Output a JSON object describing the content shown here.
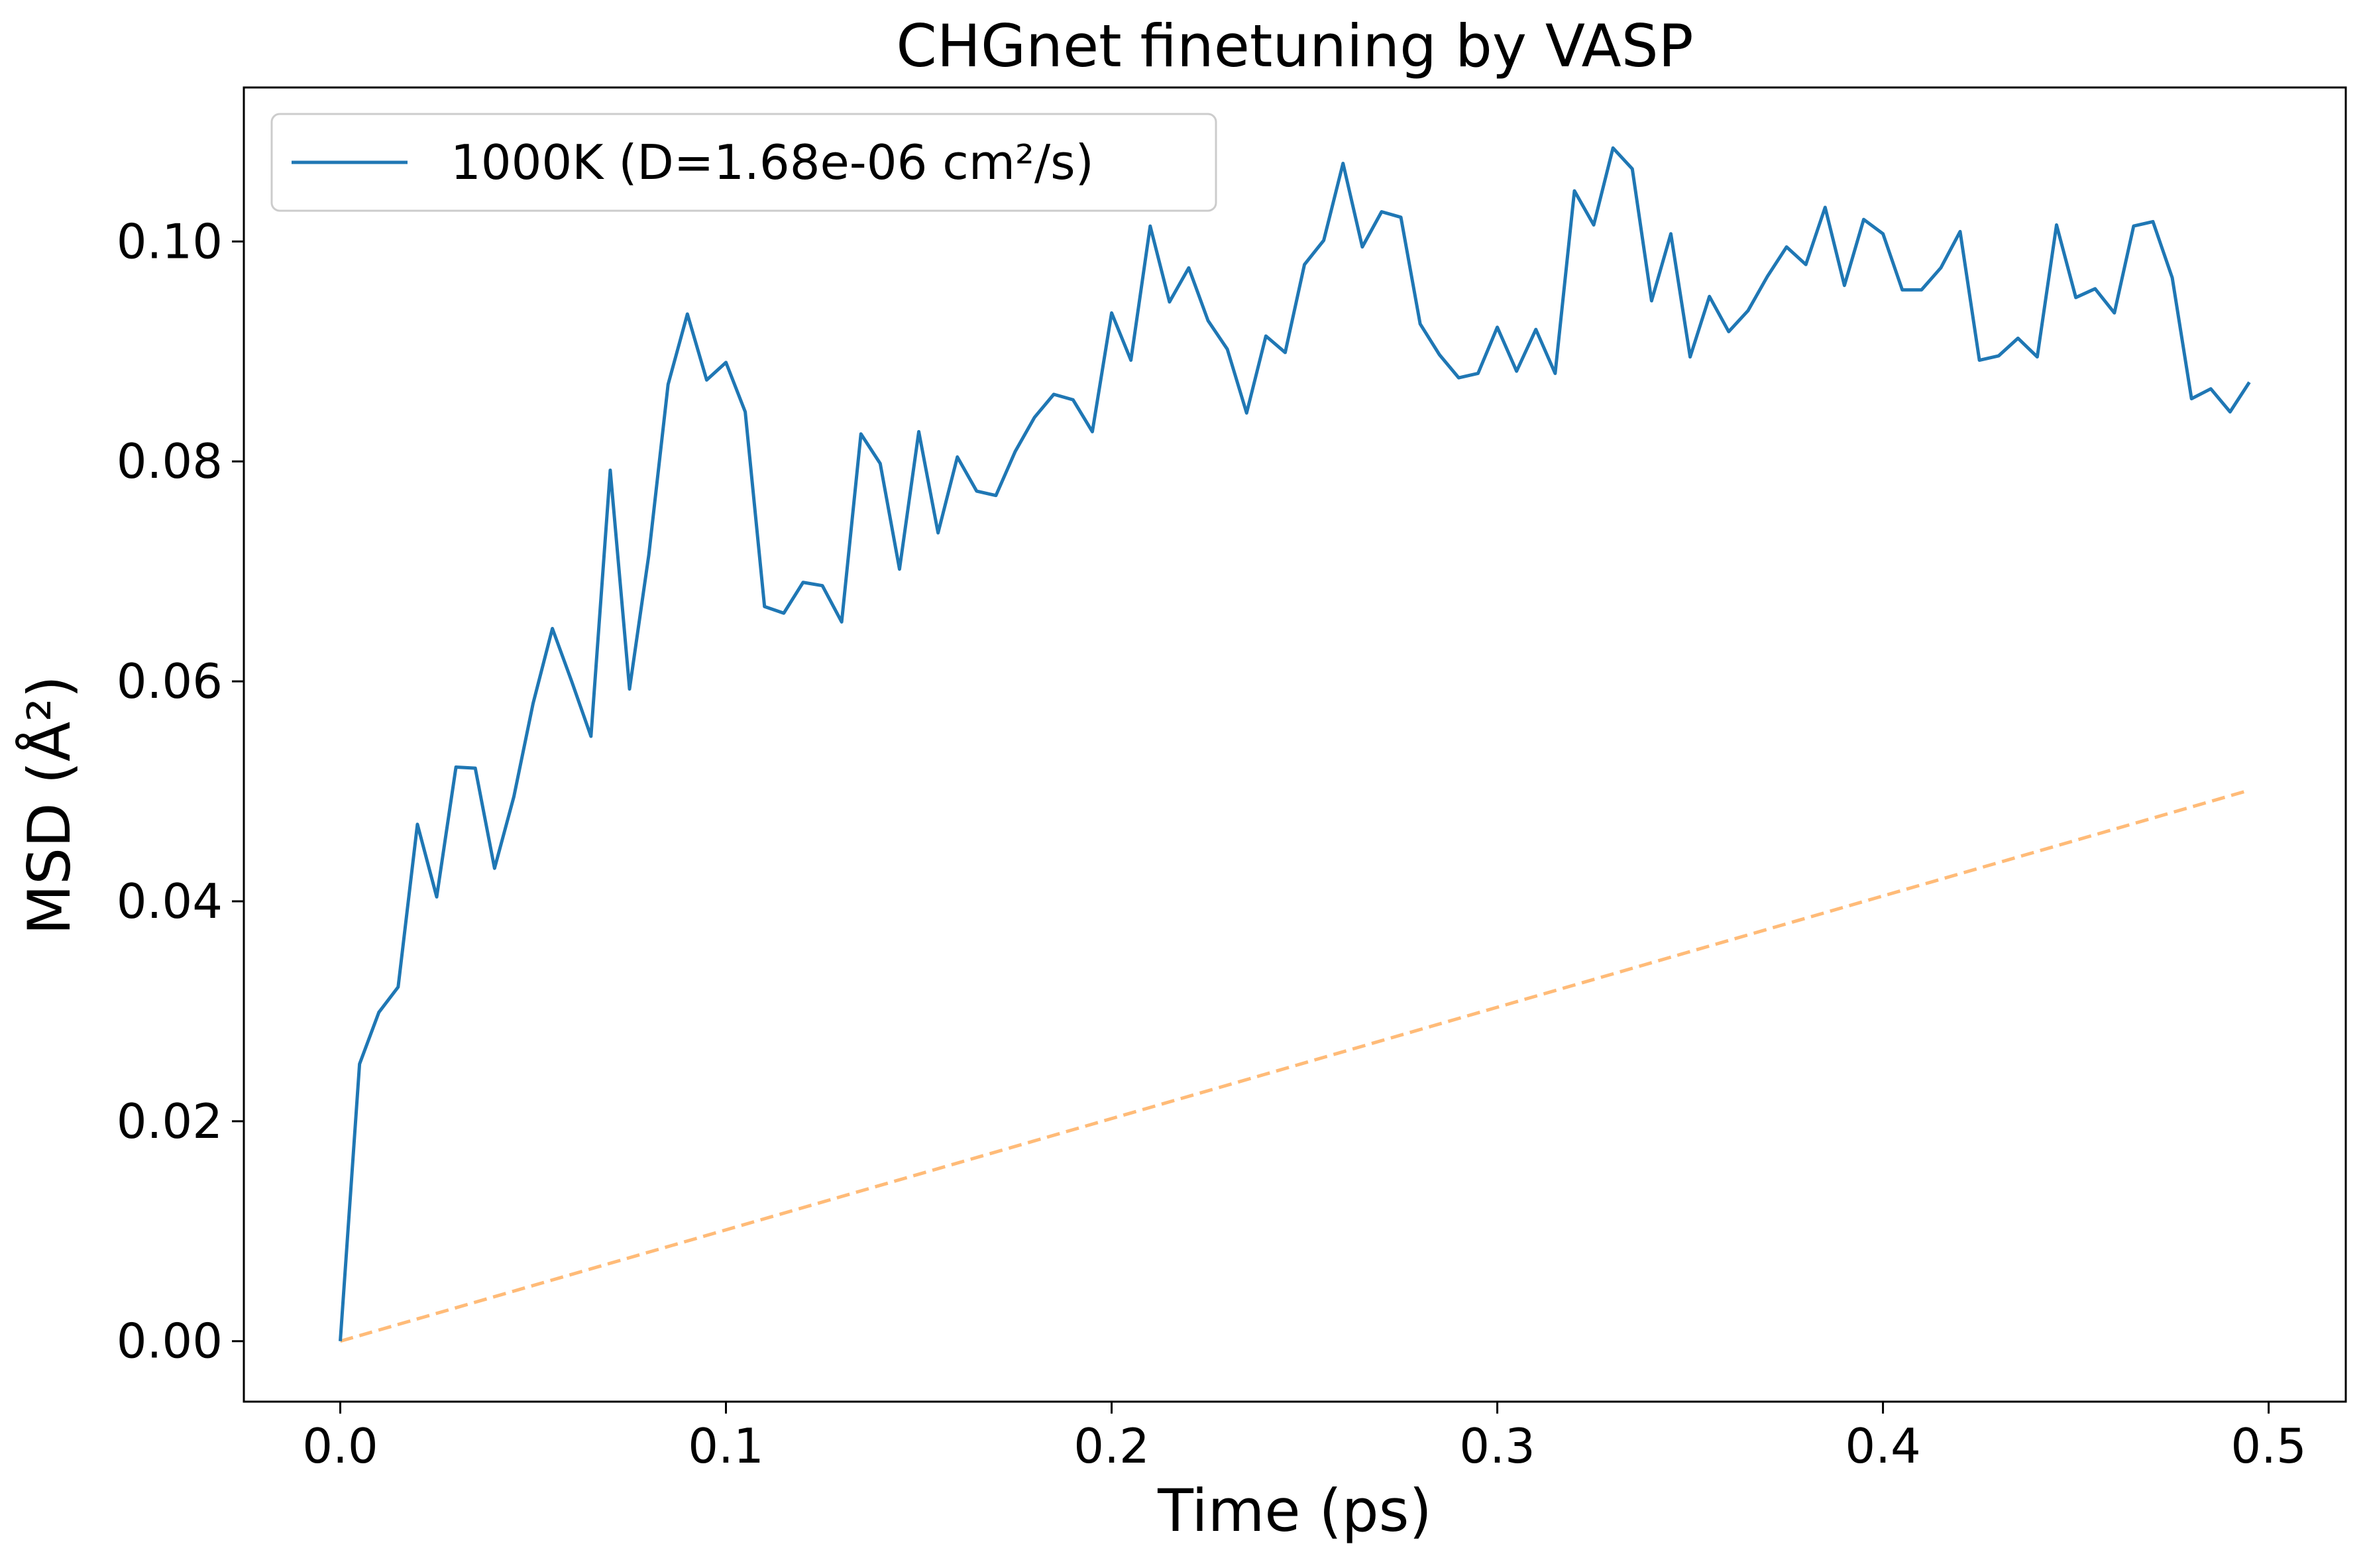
{
  "colors": {
    "series_main": "#1f77b4",
    "series_fit": "#ffbb78",
    "axes": "#000000",
    "background": "#ffffff",
    "legend_border": "#cccccc"
  },
  "chart_data": {
    "type": "line",
    "title": "CHGnet finetuning by VASP",
    "xlabel": "Time (ps)",
    "ylabel": "MSD (Å²)",
    "xlim": [
      -0.025,
      0.52
    ],
    "ylim": [
      -0.0055,
      0.114
    ],
    "xticks": [
      0.0,
      0.1,
      0.2,
      0.3,
      0.4,
      0.5
    ],
    "xtick_labels": [
      "0.0",
      "0.1",
      "0.2",
      "0.3",
      "0.4",
      "0.5"
    ],
    "yticks": [
      0.0,
      0.02,
      0.04,
      0.06,
      0.08,
      0.1
    ],
    "ytick_labels": [
      "0.00",
      "0.02",
      "0.04",
      "0.06",
      "0.08",
      "0.10"
    ],
    "grid": false,
    "legend": {
      "position": "top-left",
      "entries": [
        "1000K (D=1.68e-06 cm²/s)"
      ]
    },
    "series": [
      {
        "name": "1000K (D=1.68e-06 cm²/s)",
        "style": "solid",
        "x": [
          0.0,
          0.005,
          0.01,
          0.015,
          0.02,
          0.025,
          0.03,
          0.035,
          0.04,
          0.045,
          0.05,
          0.055,
          0.06,
          0.065,
          0.07,
          0.075,
          0.08,
          0.085,
          0.09,
          0.095,
          0.1,
          0.105,
          0.11,
          0.115,
          0.12,
          0.125,
          0.13,
          0.135,
          0.14,
          0.145,
          0.15,
          0.155,
          0.16,
          0.165,
          0.17,
          0.175,
          0.18,
          0.185,
          0.19,
          0.195,
          0.2,
          0.205,
          0.21,
          0.215,
          0.22,
          0.225,
          0.23,
          0.235,
          0.24,
          0.245,
          0.25,
          0.255,
          0.26,
          0.265,
          0.27,
          0.275,
          0.28,
          0.285,
          0.29,
          0.295,
          0.3,
          0.305,
          0.31,
          0.315,
          0.32,
          0.325,
          0.33,
          0.335,
          0.34,
          0.345,
          0.35,
          0.355,
          0.36,
          0.365,
          0.37,
          0.375,
          0.38,
          0.385,
          0.39,
          0.395,
          0.4,
          0.405,
          0.41,
          0.415,
          0.42,
          0.425,
          0.43,
          0.435,
          0.44,
          0.445,
          0.45,
          0.455,
          0.46,
          0.465,
          0.47,
          0.475,
          0.48,
          0.485,
          0.49,
          0.495
        ],
        "y": [
          0.0,
          0.0252,
          0.0299,
          0.0322,
          0.047,
          0.0404,
          0.0522,
          0.0521,
          0.043,
          0.0495,
          0.058,
          0.0648,
          0.06,
          0.055,
          0.0792,
          0.0593,
          0.0715,
          0.087,
          0.0934,
          0.0874,
          0.089,
          0.0845,
          0.0668,
          0.0662,
          0.069,
          0.0687,
          0.0654,
          0.0825,
          0.0798,
          0.0702,
          0.0827,
          0.0735,
          0.0804,
          0.0773,
          0.0769,
          0.0809,
          0.084,
          0.0861,
          0.0856,
          0.0827,
          0.0935,
          0.0892,
          0.1014,
          0.0945,
          0.0976,
          0.0928,
          0.0902,
          0.0844,
          0.0914,
          0.0899,
          0.0979,
          0.1001,
          0.1071,
          0.0995,
          0.1027,
          0.1022,
          0.0925,
          0.0897,
          0.0876,
          0.088,
          0.0922,
          0.0882,
          0.092,
          0.088,
          0.1046,
          0.1015,
          0.1085,
          0.1066,
          0.0946,
          0.1007,
          0.0895,
          0.095,
          0.0918,
          0.0937,
          0.0968,
          0.0995,
          0.0979,
          0.1031,
          0.096,
          0.102,
          0.1007,
          0.0956,
          0.0956,
          0.0976,
          0.1009,
          0.0892,
          0.0896,
          0.0912,
          0.0895,
          0.1015,
          0.0949,
          0.0957,
          0.0935,
          0.1014,
          0.1018,
          0.0967,
          0.0857,
          0.0866,
          0.0845,
          0.0872
        ]
      },
      {
        "style": "dashed",
        "x": [
          0.0,
          0.495
        ],
        "y": [
          0.0,
          0.0501
        ]
      }
    ]
  }
}
